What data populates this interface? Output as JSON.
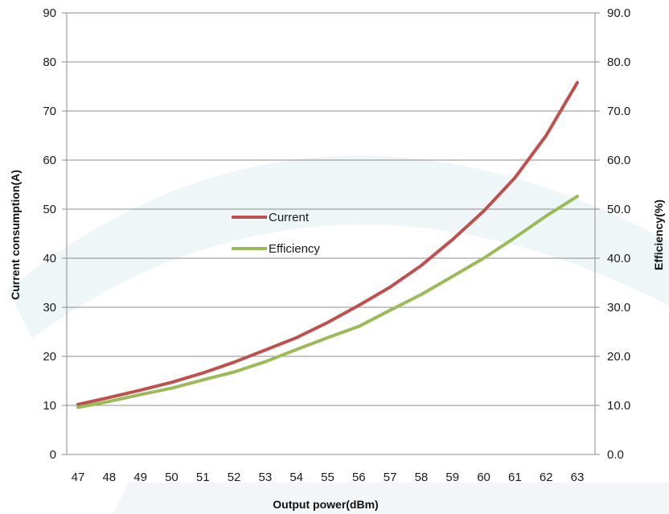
{
  "chart_data": {
    "type": "line",
    "title": "",
    "xlabel": "Output power(dBm)",
    "ylabel": "Current consumption(A)",
    "y2label": "Efficiency(%)",
    "x": [
      47,
      48,
      49,
      50,
      51,
      52,
      53,
      54,
      55,
      56,
      57,
      58,
      59,
      60,
      61,
      62,
      63
    ],
    "ylim": [
      0,
      90
    ],
    "yticks": [
      "0",
      "10",
      "20",
      "30",
      "40",
      "50",
      "60",
      "70",
      "80",
      "90"
    ],
    "y2lim": [
      0,
      90
    ],
    "y2ticks": [
      "0.0",
      "10.0",
      "20.0",
      "30.0",
      "40.0",
      "50.0",
      "60.0",
      "70.0",
      "80.0",
      "90.0"
    ],
    "grid": true,
    "legend_position": "center",
    "series": [
      {
        "name": "Current",
        "axis": "left",
        "color": "#c0504d",
        "values": [
          10.2,
          11.6,
          13.1,
          14.7,
          16.6,
          18.8,
          21.3,
          23.8,
          26.9,
          30.4,
          34.1,
          38.5,
          43.8,
          49.6,
          56.4,
          65.0,
          75.8
        ]
      },
      {
        "name": "Efficiency",
        "axis": "right",
        "color": "#9bbb59",
        "values": [
          9.6,
          10.8,
          12.2,
          13.5,
          15.2,
          16.8,
          18.9,
          21.4,
          23.8,
          26.1,
          29.4,
          32.6,
          36.3,
          40.0,
          44.2,
          48.6,
          52.6
        ]
      }
    ]
  }
}
